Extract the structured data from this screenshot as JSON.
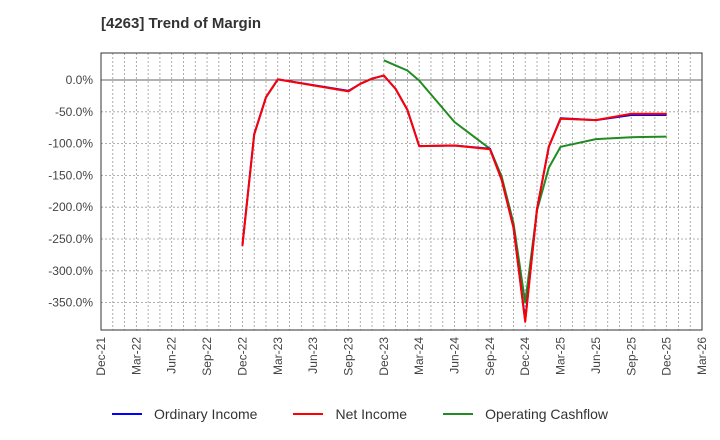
{
  "title": "[4263]  Trend of Margin",
  "colors": {
    "ordinary_income": "#0000ff",
    "net_income": "#ff0000",
    "operating_cashflow": "#228b22"
  },
  "legend": [
    {
      "label": "Ordinary Income",
      "color": "#0000ff"
    },
    {
      "label": "Net Income",
      "color": "#ff0000"
    },
    {
      "label": "Operating Cashflow",
      "color": "#228b22"
    }
  ],
  "chart_data": {
    "type": "line",
    "title": "[4263]  Trend of Margin",
    "xlabel": "",
    "ylabel": "",
    "ylim": [
      -395,
      42
    ],
    "grid": true,
    "legend_position": "bottom",
    "x_ticks": [
      "Dec-21",
      "Mar-22",
      "Jun-22",
      "Sep-22",
      "Dec-22",
      "Mar-23",
      "Jun-23",
      "Sep-23",
      "Dec-23",
      "Mar-24",
      "Jun-24",
      "Sep-24",
      "Dec-24",
      "Mar-25",
      "Jun-25",
      "Sep-25",
      "Dec-25",
      "Mar-26"
    ],
    "y_ticks": [
      "0.0%",
      "-50.0%",
      "-100.0%",
      "-150.0%",
      "-200.0%",
      "-250.0%",
      "-300.0%",
      "-350.0%"
    ],
    "y_tick_values": [
      0,
      -50,
      -100,
      -150,
      -200,
      -250,
      -300,
      -350
    ],
    "series": [
      {
        "name": "Ordinary Income",
        "color": "#0000ff",
        "x": [
          "Dec-22",
          "Jan-23",
          "Feb-23",
          "Mar-23",
          "Sep-23",
          "Oct-23",
          "Nov-23",
          "Dec-23",
          "Jan-24",
          "Feb-24",
          "Mar-24",
          "Jun-24",
          "Sep-24",
          "Oct-24",
          "Nov-24",
          "Dec-24",
          "Jan-25",
          "Feb-25",
          "Mar-25",
          "Jun-25",
          "Sep-25",
          "Dec-25"
        ],
        "values": [
          -260,
          -85,
          -27,
          1,
          -17,
          -6,
          2,
          7,
          -14,
          -47,
          -104,
          -103,
          -108,
          -157,
          -232,
          -378,
          -203,
          -105,
          -60,
          -63,
          -55,
          -55
        ]
      },
      {
        "name": "Net Income",
        "color": "#ff0000",
        "x": [
          "Dec-22",
          "Jan-23",
          "Feb-23",
          "Mar-23",
          "Sep-23",
          "Oct-23",
          "Nov-23",
          "Dec-23",
          "Jan-24",
          "Feb-24",
          "Mar-24",
          "Jun-24",
          "Sep-24",
          "Oct-24",
          "Nov-24",
          "Dec-24",
          "Jan-25",
          "Feb-25",
          "Mar-25",
          "Jun-25",
          "Sep-25",
          "Dec-25"
        ],
        "values": [
          -261,
          -86,
          -27,
          1,
          -18,
          -6,
          2,
          7,
          -14,
          -47,
          -104,
          -103,
          -109,
          -157,
          -232,
          -380,
          -203,
          -105,
          -61,
          -63,
          -53,
          -53
        ]
      },
      {
        "name": "Operating Cashflow",
        "color": "#228b22",
        "x": [
          "Dec-23",
          "Jan-24",
          "Feb-24",
          "Mar-24",
          "Jun-24",
          "Sep-24",
          "Oct-24",
          "Nov-24",
          "Dec-24",
          "Jan-25",
          "Feb-25",
          "Mar-25",
          "Jun-25",
          "Sep-25",
          "Dec-25"
        ],
        "values": [
          31,
          23,
          15,
          -1,
          -66,
          -108,
          -152,
          -225,
          -350,
          -205,
          -138,
          -105,
          -93,
          -90,
          -89
        ]
      }
    ]
  }
}
